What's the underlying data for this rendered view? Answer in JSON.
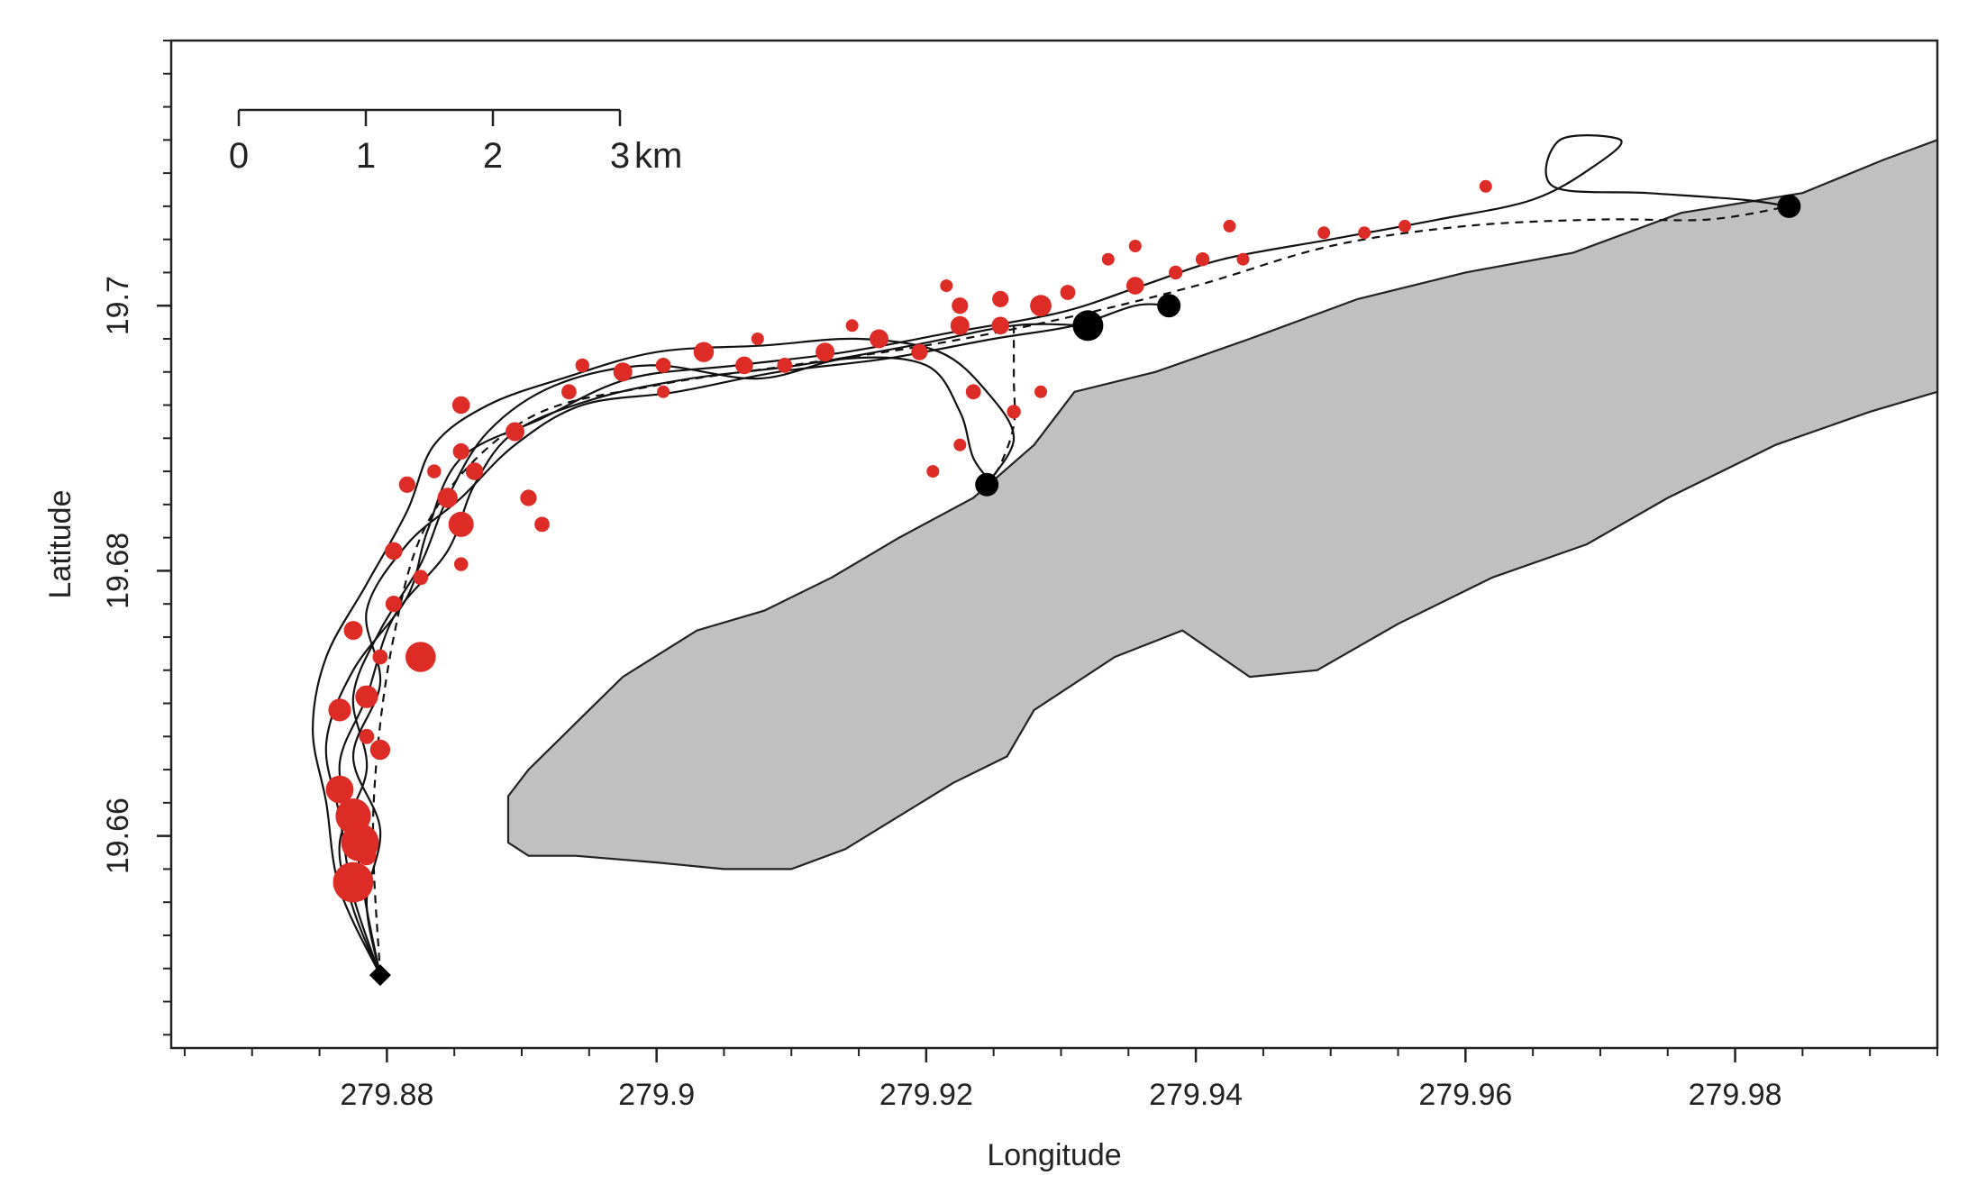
{
  "chart_data": {
    "type": "scatter",
    "title": "",
    "xlabel": "Longitude",
    "ylabel": "Latitude",
    "xlim": [
      279.864,
      279.995
    ],
    "ylim": [
      19.644,
      19.72
    ],
    "x_ticks": [
      279.88,
      279.9,
      279.92,
      279.94,
      279.96,
      279.98
    ],
    "x_tick_labels": [
      "279.88",
      "279.9",
      "279.92",
      "279.94",
      "279.96",
      "279.98"
    ],
    "y_ticks": [
      19.66,
      19.68,
      19.7
    ],
    "y_tick_labels": [
      "19.66",
      "19.68",
      "19.7"
    ],
    "grid": false,
    "legend": "none",
    "colors": {
      "land_fill": "#c0c0c0",
      "track": "#111111",
      "foraging_points": "#dd2b25",
      "endpoints": "#000000"
    },
    "scale_bar": {
      "ticks": [
        "0",
        "1",
        "2",
        "3"
      ],
      "unit": "km"
    },
    "land_polygon": [
      [
        279.889,
        19.6615
      ],
      [
        279.889,
        19.663
      ],
      [
        279.8905,
        19.665
      ],
      [
        279.8925,
        19.667
      ],
      [
        279.8945,
        19.669
      ],
      [
        279.8975,
        19.672
      ],
      [
        279.903,
        19.6755
      ],
      [
        279.908,
        19.677
      ],
      [
        279.913,
        19.6795
      ],
      [
        279.918,
        19.6825
      ],
      [
        279.9235,
        19.6855
      ],
      [
        279.928,
        19.6895
      ],
      [
        279.931,
        19.6935
      ],
      [
        279.937,
        19.695
      ],
      [
        279.944,
        19.6975
      ],
      [
        279.952,
        19.7005
      ],
      [
        279.96,
        19.7025
      ],
      [
        279.968,
        19.704
      ],
      [
        279.976,
        19.707
      ],
      [
        279.985,
        19.7085
      ],
      [
        279.991,
        19.711
      ],
      [
        279.995,
        19.7125
      ],
      [
        279.995,
        19.6935
      ],
      [
        279.99,
        19.692
      ],
      [
        279.983,
        19.6895
      ],
      [
        279.975,
        19.6855
      ],
      [
        279.969,
        19.682
      ],
      [
        279.962,
        19.6795
      ],
      [
        279.955,
        19.676
      ],
      [
        279.949,
        19.6725
      ],
      [
        279.944,
        19.672
      ],
      [
        279.939,
        19.6755
      ],
      [
        279.934,
        19.6735
      ],
      [
        279.928,
        19.6695
      ],
      [
        279.926,
        19.666
      ],
      [
        279.922,
        19.664
      ],
      [
        279.918,
        19.6615
      ],
      [
        279.914,
        19.659
      ],
      [
        279.91,
        19.6575
      ],
      [
        279.905,
        19.6575
      ],
      [
        279.9,
        19.658
      ],
      [
        279.894,
        19.6585
      ],
      [
        279.8905,
        19.6585
      ],
      [
        279.889,
        19.6595
      ]
    ],
    "tracks": [
      {
        "style": "solid",
        "points": [
          [
            279.8795,
            19.6495
          ],
          [
            279.8775,
            19.6555
          ],
          [
            279.8765,
            19.6615
          ],
          [
            279.8755,
            19.667
          ],
          [
            279.8775,
            19.6725
          ],
          [
            279.8815,
            19.678
          ],
          [
            279.883,
            19.683
          ],
          [
            279.8855,
            19.6885
          ],
          [
            279.8915,
            19.6915
          ],
          [
            279.898,
            19.6945
          ],
          [
            279.906,
            19.6955
          ],
          [
            279.914,
            19.6965
          ],
          [
            279.922,
            19.698
          ],
          [
            279.93,
            19.6995
          ],
          [
            279.936,
            19.7015
          ],
          [
            279.942,
            19.7035
          ],
          [
            279.95,
            19.705
          ],
          [
            279.958,
            19.7065
          ],
          [
            279.965,
            19.708
          ],
          [
            279.9695,
            19.7105
          ],
          [
            279.9715,
            19.7125
          ],
          [
            279.967,
            19.7125
          ],
          [
            279.9665,
            19.709
          ],
          [
            279.9735,
            19.7085
          ],
          [
            279.9805,
            19.708
          ],
          [
            279.984,
            19.7075
          ]
        ]
      },
      {
        "style": "solid",
        "points": [
          [
            279.8795,
            19.6495
          ],
          [
            279.8785,
            19.6545
          ],
          [
            279.8775,
            19.6605
          ],
          [
            279.8765,
            19.6655
          ],
          [
            279.8785,
            19.6705
          ],
          [
            279.8805,
            19.6765
          ],
          [
            279.8845,
            19.6815
          ],
          [
            279.8865,
            19.6865
          ],
          [
            279.8895,
            19.6905
          ],
          [
            279.8955,
            19.693
          ],
          [
            279.9025,
            19.6945
          ],
          [
            279.9105,
            19.6955
          ],
          [
            279.919,
            19.697
          ],
          [
            279.9265,
            19.6985
          ],
          [
            279.932,
            19.6985
          ]
        ]
      },
      {
        "style": "solid",
        "points": [
          [
            279.8795,
            19.6495
          ],
          [
            279.8765,
            19.656
          ],
          [
            279.8755,
            19.6625
          ],
          [
            279.8745,
            19.668
          ],
          [
            279.8755,
            19.6735
          ],
          [
            279.8785,
            19.679
          ],
          [
            279.8815,
            19.6845
          ],
          [
            279.8835,
            19.6895
          ],
          [
            279.8875,
            19.6925
          ],
          [
            279.893,
            19.6945
          ],
          [
            279.9,
            19.6965
          ],
          [
            279.908,
            19.697
          ],
          [
            279.915,
            19.6975
          ],
          [
            279.921,
            19.6965
          ],
          [
            279.9245,
            19.6935
          ],
          [
            279.9265,
            19.69
          ],
          [
            279.9245,
            19.6865
          ]
        ]
      },
      {
        "style": "solid",
        "points": [
          [
            279.8795,
            19.6495
          ],
          [
            279.8785,
            19.655
          ],
          [
            279.8795,
            19.6605
          ],
          [
            279.8775,
            19.666
          ],
          [
            279.8795,
            19.6715
          ],
          [
            279.8785,
            19.677
          ],
          [
            279.8815,
            19.682
          ],
          [
            279.8855,
            19.6855
          ],
          [
            279.8895,
            19.6895
          ],
          [
            279.8945,
            19.6925
          ],
          [
            279.9015,
            19.6935
          ],
          [
            279.909,
            19.695
          ],
          [
            279.917,
            19.696
          ],
          [
            279.925,
            19.6975
          ],
          [
            279.931,
            19.6985
          ],
          [
            279.9355,
            19.7
          ],
          [
            279.938,
            19.7
          ]
        ]
      },
      {
        "style": "solid",
        "points": [
          [
            279.8795,
            19.6495
          ],
          [
            279.8775,
            19.6545
          ],
          [
            279.8765,
            19.6595
          ],
          [
            279.8785,
            19.665
          ],
          [
            279.8775,
            19.6705
          ],
          [
            279.8795,
            19.6755
          ],
          [
            279.8825,
            19.6805
          ],
          [
            279.8845,
            19.6855
          ],
          [
            279.8875,
            19.6905
          ],
          [
            279.8925,
            19.694
          ],
          [
            279.8995,
            19.6955
          ],
          [
            279.9075,
            19.6945
          ],
          [
            279.914,
            19.696
          ],
          [
            279.92,
            19.6955
          ],
          [
            279.9225,
            19.692
          ],
          [
            279.9235,
            19.6885
          ],
          [
            279.925,
            19.6865
          ]
        ]
      },
      {
        "style": "dashed",
        "points": [
          [
            279.8795,
            19.6495
          ],
          [
            279.879,
            19.662
          ],
          [
            279.8805,
            19.675
          ],
          [
            279.8835,
            19.6845
          ],
          [
            279.8905,
            19.6915
          ],
          [
            279.9,
            19.694
          ],
          [
            279.91,
            19.6955
          ],
          [
            279.92,
            19.697
          ],
          [
            279.93,
            19.699
          ],
          [
            279.94,
            19.7015
          ],
          [
            279.95,
            19.7045
          ],
          [
            279.96,
            19.706
          ],
          [
            279.97,
            19.7065
          ],
          [
            279.978,
            19.7065
          ],
          [
            279.984,
            19.7075
          ]
        ]
      },
      {
        "style": "dashed",
        "points": [
          [
            279.9265,
            19.6985
          ],
          [
            279.9265,
            19.6945
          ],
          [
            279.9265,
            19.691
          ],
          [
            279.9255,
            19.688
          ],
          [
            279.9245,
            19.6865
          ]
        ]
      }
    ],
    "foraging_points": [
      {
        "x": 279.8775,
        "y": 19.6565,
        "size": 3.2
      },
      {
        "x": 279.878,
        "y": 19.6595,
        "size": 3.0
      },
      {
        "x": 279.8775,
        "y": 19.6615,
        "size": 2.8
      },
      {
        "x": 279.8765,
        "y": 19.6635,
        "size": 2.2
      },
      {
        "x": 279.8795,
        "y": 19.6665,
        "size": 1.6
      },
      {
        "x": 279.8765,
        "y": 19.6695,
        "size": 1.8
      },
      {
        "x": 279.8785,
        "y": 19.6705,
        "size": 1.8
      },
      {
        "x": 279.8825,
        "y": 19.6735,
        "size": 2.4
      },
      {
        "x": 279.8775,
        "y": 19.6755,
        "size": 1.5
      },
      {
        "x": 279.8805,
        "y": 19.6775,
        "size": 1.3
      },
      {
        "x": 279.8825,
        "y": 19.6795,
        "size": 1.2
      },
      {
        "x": 279.8805,
        "y": 19.6815,
        "size": 1.4
      },
      {
        "x": 279.8855,
        "y": 19.6835,
        "size": 2.0
      },
      {
        "x": 279.8845,
        "y": 19.6855,
        "size": 1.6
      },
      {
        "x": 279.8815,
        "y": 19.6865,
        "size": 1.3
      },
      {
        "x": 279.8865,
        "y": 19.6875,
        "size": 1.4
      },
      {
        "x": 279.8855,
        "y": 19.689,
        "size": 1.3
      },
      {
        "x": 279.8895,
        "y": 19.6905,
        "size": 1.5
      },
      {
        "x": 279.8855,
        "y": 19.6925,
        "size": 1.4
      },
      {
        "x": 279.8935,
        "y": 19.6935,
        "size": 1.2
      },
      {
        "x": 279.8975,
        "y": 19.695,
        "size": 1.5
      },
      {
        "x": 279.9005,
        "y": 19.6955,
        "size": 1.2
      },
      {
        "x": 279.9035,
        "y": 19.6965,
        "size": 1.6
      },
      {
        "x": 279.9065,
        "y": 19.6955,
        "size": 1.4
      },
      {
        "x": 279.9095,
        "y": 19.6955,
        "size": 1.2
      },
      {
        "x": 279.9125,
        "y": 19.6965,
        "size": 1.5
      },
      {
        "x": 279.9165,
        "y": 19.6975,
        "size": 1.5
      },
      {
        "x": 279.9195,
        "y": 19.6965,
        "size": 1.3
      },
      {
        "x": 279.9225,
        "y": 19.6985,
        "size": 1.5
      },
      {
        "x": 279.9255,
        "y": 19.6985,
        "size": 1.4
      },
      {
        "x": 279.9285,
        "y": 19.7,
        "size": 1.7
      },
      {
        "x": 279.9255,
        "y": 19.7005,
        "size": 1.3
      },
      {
        "x": 279.9225,
        "y": 19.7,
        "size": 1.3
      },
      {
        "x": 279.9305,
        "y": 19.701,
        "size": 1.2
      },
      {
        "x": 279.9355,
        "y": 19.7015,
        "size": 1.4
      },
      {
        "x": 279.9385,
        "y": 19.7025,
        "size": 1.1
      },
      {
        "x": 279.9405,
        "y": 19.7035,
        "size": 1.1
      },
      {
        "x": 279.9435,
        "y": 19.7035,
        "size": 1.0
      },
      {
        "x": 279.9495,
        "y": 19.7055,
        "size": 1.0
      },
      {
        "x": 279.9525,
        "y": 19.7055,
        "size": 1.0
      },
      {
        "x": 279.9555,
        "y": 19.706,
        "size": 1.0
      },
      {
        "x": 279.9615,
        "y": 19.709,
        "size": 1.0
      },
      {
        "x": 279.9425,
        "y": 19.706,
        "size": 1.0
      },
      {
        "x": 279.9355,
        "y": 19.7045,
        "size": 1.0
      },
      {
        "x": 279.9235,
        "y": 19.6935,
        "size": 1.2
      },
      {
        "x": 279.9265,
        "y": 19.692,
        "size": 1.1
      },
      {
        "x": 279.9225,
        "y": 19.6895,
        "size": 1.0
      },
      {
        "x": 279.9205,
        "y": 19.6875,
        "size": 1.0
      },
      {
        "x": 279.8905,
        "y": 19.6855,
        "size": 1.3
      },
      {
        "x": 279.8915,
        "y": 19.6835,
        "size": 1.2
      },
      {
        "x": 279.8945,
        "y": 19.6955,
        "size": 1.1
      },
      {
        "x": 279.9005,
        "y": 19.6935,
        "size": 1.0
      },
      {
        "x": 279.9075,
        "y": 19.6975,
        "size": 1.0
      },
      {
        "x": 279.9145,
        "y": 19.6985,
        "size": 1.0
      },
      {
        "x": 279.9215,
        "y": 19.7015,
        "size": 1.0
      },
      {
        "x": 279.9285,
        "y": 19.6935,
        "size": 1.0
      },
      {
        "x": 279.9335,
        "y": 19.7035,
        "size": 1.0
      },
      {
        "x": 279.8855,
        "y": 19.6925,
        "size": 1.1
      },
      {
        "x": 279.8835,
        "y": 19.6875,
        "size": 1.1
      },
      {
        "x": 279.8855,
        "y": 19.6805,
        "size": 1.1
      },
      {
        "x": 279.8795,
        "y": 19.6735,
        "size": 1.2
      },
      {
        "x": 279.8785,
        "y": 19.6675,
        "size": 1.2
      },
      {
        "x": 279.8785,
        "y": 19.6585,
        "size": 1.5
      }
    ],
    "endpoints": [
      {
        "x": 279.984,
        "y": 19.7075,
        "size": 1.3
      },
      {
        "x": 279.938,
        "y": 19.7,
        "size": 1.3
      },
      {
        "x": 279.932,
        "y": 19.6985,
        "size": 1.7
      },
      {
        "x": 279.9245,
        "y": 19.6865,
        "size": 1.3
      }
    ],
    "start_marker": {
      "x": 279.8795,
      "y": 19.6495,
      "shape": "diamond"
    }
  }
}
